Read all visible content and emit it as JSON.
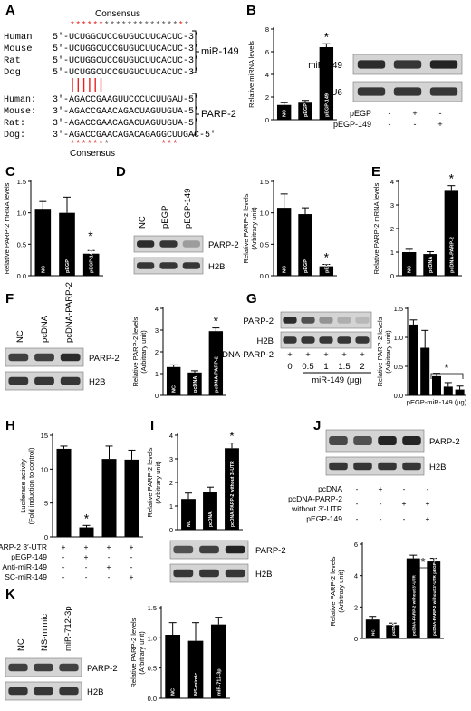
{
  "panels": {
    "A": {
      "letter": "A",
      "consensus_top": "Consensus",
      "consensus_bottom": "Consensus",
      "mirna_label": "miR-149",
      "target_label": "PARP-2",
      "mirna_rows": [
        {
          "species": "Human",
          "seq": "5′-UCUGGCUCCGUGUCUUCACUC-3′"
        },
        {
          "species": "Mouse",
          "seq": "5′-UCUGGCUCCGUGUCUUCACUC-3′"
        },
        {
          "species": "Rat",
          "seq": "5′-UCUGGCUCCGUGUCUUCACUC-3′"
        },
        {
          "species": "Dog",
          "seq": "5′-UCUGGCUCCGUGUCUUCACUC-3′"
        }
      ],
      "target_rows": [
        {
          "species": "Human:",
          "seq": "3′-AGACCGAAGUUCCCUCUUGAU-5′"
        },
        {
          "species": "Mouse:",
          "seq": "3′-AGACCGAACAGACUAGUUGUA-5′"
        },
        {
          "species": "Rat:",
          "seq": "3′-AGACCGAACAGACUAGUUGUA-5′"
        },
        {
          "species": "Dog:",
          "seq": "3′-AGACCGAACAGACAGAGGCUUGAC-5′"
        }
      ]
    },
    "B": {
      "letter": "B",
      "ylabel": "Relative miRNA levels",
      "yticks": [
        "0",
        "2",
        "4",
        "6",
        "8"
      ],
      "bars": [
        {
          "label": "NC",
          "value": 1.3,
          "err": 0.2
        },
        {
          "label": "pEGP",
          "value": 1.5,
          "err": 0.2
        },
        {
          "label": "pEGP-149",
          "value": 6.4,
          "err": 0.3
        }
      ],
      "blot_labels": [
        "miR-149",
        "U6"
      ],
      "cond_rows": [
        {
          "name": "pEGP",
          "marks": [
            "-",
            "+",
            "-"
          ]
        },
        {
          "name": "pEGP-149",
          "marks": [
            "-",
            "-",
            "+"
          ]
        }
      ]
    },
    "C": {
      "letter": "C",
      "ylabel": "Relative PARP-2 mRNA levels",
      "yticks": [
        "0.0",
        "0.5",
        "1.0",
        "1.5"
      ],
      "bars": [
        {
          "label": "NC",
          "value": 1.05,
          "err": 0.13
        },
        {
          "label": "pEGP",
          "value": 1.0,
          "err": 0.25
        },
        {
          "label": "pEGP-149",
          "value": 0.35,
          "err": 0.05
        }
      ]
    },
    "D": {
      "letter": "D",
      "lane_labels": [
        "NC",
        "pEGP",
        "pEGP-149"
      ],
      "blot_labels": [
        "PARP-2",
        "H2B"
      ],
      "ylabel": "Relative PARP-2 levels",
      "ylabel2": "(Arbitrary unit)",
      "yticks": [
        "0.0",
        "0.5",
        "1.0",
        "1.5"
      ],
      "bars": [
        {
          "label": "NC",
          "value": 1.08,
          "err": 0.22
        },
        {
          "label": "pEGP",
          "value": 0.98,
          "err": 0.1
        },
        {
          "label": "pEGP-149",
          "value": 0.15,
          "err": 0.03
        }
      ]
    },
    "E": {
      "letter": "E",
      "ylabel": "Relative PARP-2 mRNA levels",
      "yticks": [
        "0",
        "1",
        "2",
        "3",
        "4"
      ],
      "bars": [
        {
          "label": "NC",
          "value": 1.0,
          "err": 0.12
        },
        {
          "label": "pcDNA",
          "value": 0.92,
          "err": 0.1
        },
        {
          "label": "pcDNA-PARP-2",
          "value": 3.6,
          "err": 0.22
        }
      ]
    },
    "F": {
      "letter": "F",
      "lane_labels": [
        "NC",
        "pcDNA",
        "pcDNA-PARP-2"
      ],
      "blot_labels": [
        "PARP-2",
        "H2B"
      ],
      "ylabel": "Relative PARP-2 levels",
      "ylabel2": "(Arbitrary unit)",
      "yticks": [
        "0",
        "1",
        "2",
        "3",
        "4"
      ],
      "bars": [
        {
          "label": "NC",
          "value": 1.3,
          "err": 0.1
        },
        {
          "label": "pcDNA",
          "value": 1.05,
          "err": 0.08
        },
        {
          "label": "pcDNA-PARP-2",
          "value": 2.95,
          "err": 0.15
        }
      ]
    },
    "G": {
      "letter": "G",
      "blot_labels": [
        "PARP-2",
        "H2B"
      ],
      "cond_label": "pcDNA-PARP-2",
      "plus_marks": [
        "+",
        "+",
        "+",
        "+",
        "+"
      ],
      "doses": [
        "0",
        "0.5",
        "1",
        "1.5",
        "2"
      ],
      "dose_label": "miR-149 (μg)",
      "ylabel": "Relative PARP-2 levels",
      "ylabel2": "(Arbitrary unit)",
      "yticks": [
        "0.0",
        "0.5",
        "1.0",
        "1.5"
      ],
      "bars": [
        {
          "label": "0",
          "value": 1.22,
          "err": 0.08
        },
        {
          "label": "0.5",
          "value": 0.82,
          "err": 0.3
        },
        {
          "label": "1",
          "value": 0.33,
          "err": 0.05
        },
        {
          "label": "1.5",
          "value": 0.15,
          "err": 0.07
        },
        {
          "label": "2",
          "value": 0.1,
          "err": 0.06
        }
      ],
      "xlabel": "pEGP-miR-149 (μg)"
    },
    "H": {
      "letter": "H",
      "ylabel": "Luciferase activity",
      "ylabel2": "(Fold induction to control)",
      "yticks": [
        "0",
        "5",
        "10",
        "15"
      ],
      "bars": [
        {
          "value": 13.0,
          "err": 0.4
        },
        {
          "value": 1.4,
          "err": 0.3
        },
        {
          "value": 11.5,
          "err": 1.9
        },
        {
          "value": 11.4,
          "err": 1.4
        }
      ],
      "cond_rows": [
        {
          "name": "PARP-2 3′-UTR",
          "marks": [
            "+",
            "+",
            "+",
            "+"
          ]
        },
        {
          "name": "pEGP-149",
          "marks": [
            "-",
            "+",
            "-",
            "-"
          ]
        },
        {
          "name": "Anti-miR-149",
          "marks": [
            "-",
            "-",
            "+",
            "-"
          ]
        },
        {
          "name": "SC-miR-149",
          "marks": [
            "-",
            "-",
            "-",
            "+"
          ]
        }
      ]
    },
    "I": {
      "letter": "I",
      "ylabel": "Relative PARP-2 levels",
      "ylabel2": "(Arbitrary unit)",
      "yticks": [
        "0",
        "1",
        "2",
        "3",
        "4"
      ],
      "bars": [
        {
          "label": "NC",
          "value": 1.3,
          "err": 0.25
        },
        {
          "label": "pcDNA",
          "value": 1.6,
          "err": 0.2
        },
        {
          "label": "pcDNA-PARP-2 without 3′-UTR",
          "value": 3.45,
          "err": 0.22
        }
      ],
      "blot_labels": [
        "PARP-2",
        "H2B"
      ]
    },
    "J": {
      "letter": "J",
      "blot_labels": [
        "PARP-2",
        "H2B"
      ],
      "cond_rows": [
        {
          "name": "pcDNA",
          "marks": [
            "-",
            "+",
            "-",
            "-"
          ]
        },
        {
          "name": "pcDNA-PARP-2",
          "marks": [
            "-",
            "-",
            "+",
            "+"
          ]
        },
        {
          "name": "without 3′-UTR",
          "marks": []
        },
        {
          "name": "pEGP-149",
          "marks": [
            "-",
            "-",
            "-",
            "+"
          ]
        }
      ],
      "ylabel": "Relative PARP-2 levels",
      "ylabel2": "(Arbitrary unit)",
      "yticks": [
        "0",
        "2",
        "4",
        "6"
      ],
      "bars": [
        {
          "label": "NC",
          "value": 1.2,
          "err": 0.2
        },
        {
          "label": "pcDNA",
          "value": 0.85,
          "err": 0.12
        },
        {
          "label": "pcDNA-PARP-2 without 3′-UTR",
          "value": 5.1,
          "err": 0.2
        },
        {
          "label": "pcDNA-PARP-2 without 3′-UTR pEGP-149",
          "value": 4.9,
          "err": 0.2
        }
      ]
    },
    "K": {
      "letter": "K",
      "lane_labels": [
        "NC",
        "NS-mimic",
        "miR-712-3p"
      ],
      "blot_labels": [
        "PARP-2",
        "H2B"
      ],
      "ylabel": "Relative PARP-2 levels",
      "ylabel2": "(Arbitrary unit)",
      "yticks": [
        "0.0",
        "0.5",
        "1.0",
        "1.5"
      ],
      "bars": [
        {
          "label": "NC",
          "value": 1.05,
          "err": 0.2
        },
        {
          "label": "NS-mimic",
          "value": 0.95,
          "err": 0.3
        },
        {
          "label": "miR-712-3p",
          "value": 1.22,
          "err": 0.12
        }
      ]
    }
  },
  "significance_mark": "*",
  "colors": {
    "red": "#e8231f",
    "bar": "#000000",
    "blot_bg": "#d4d4d4",
    "band": "#1a1a1a"
  }
}
